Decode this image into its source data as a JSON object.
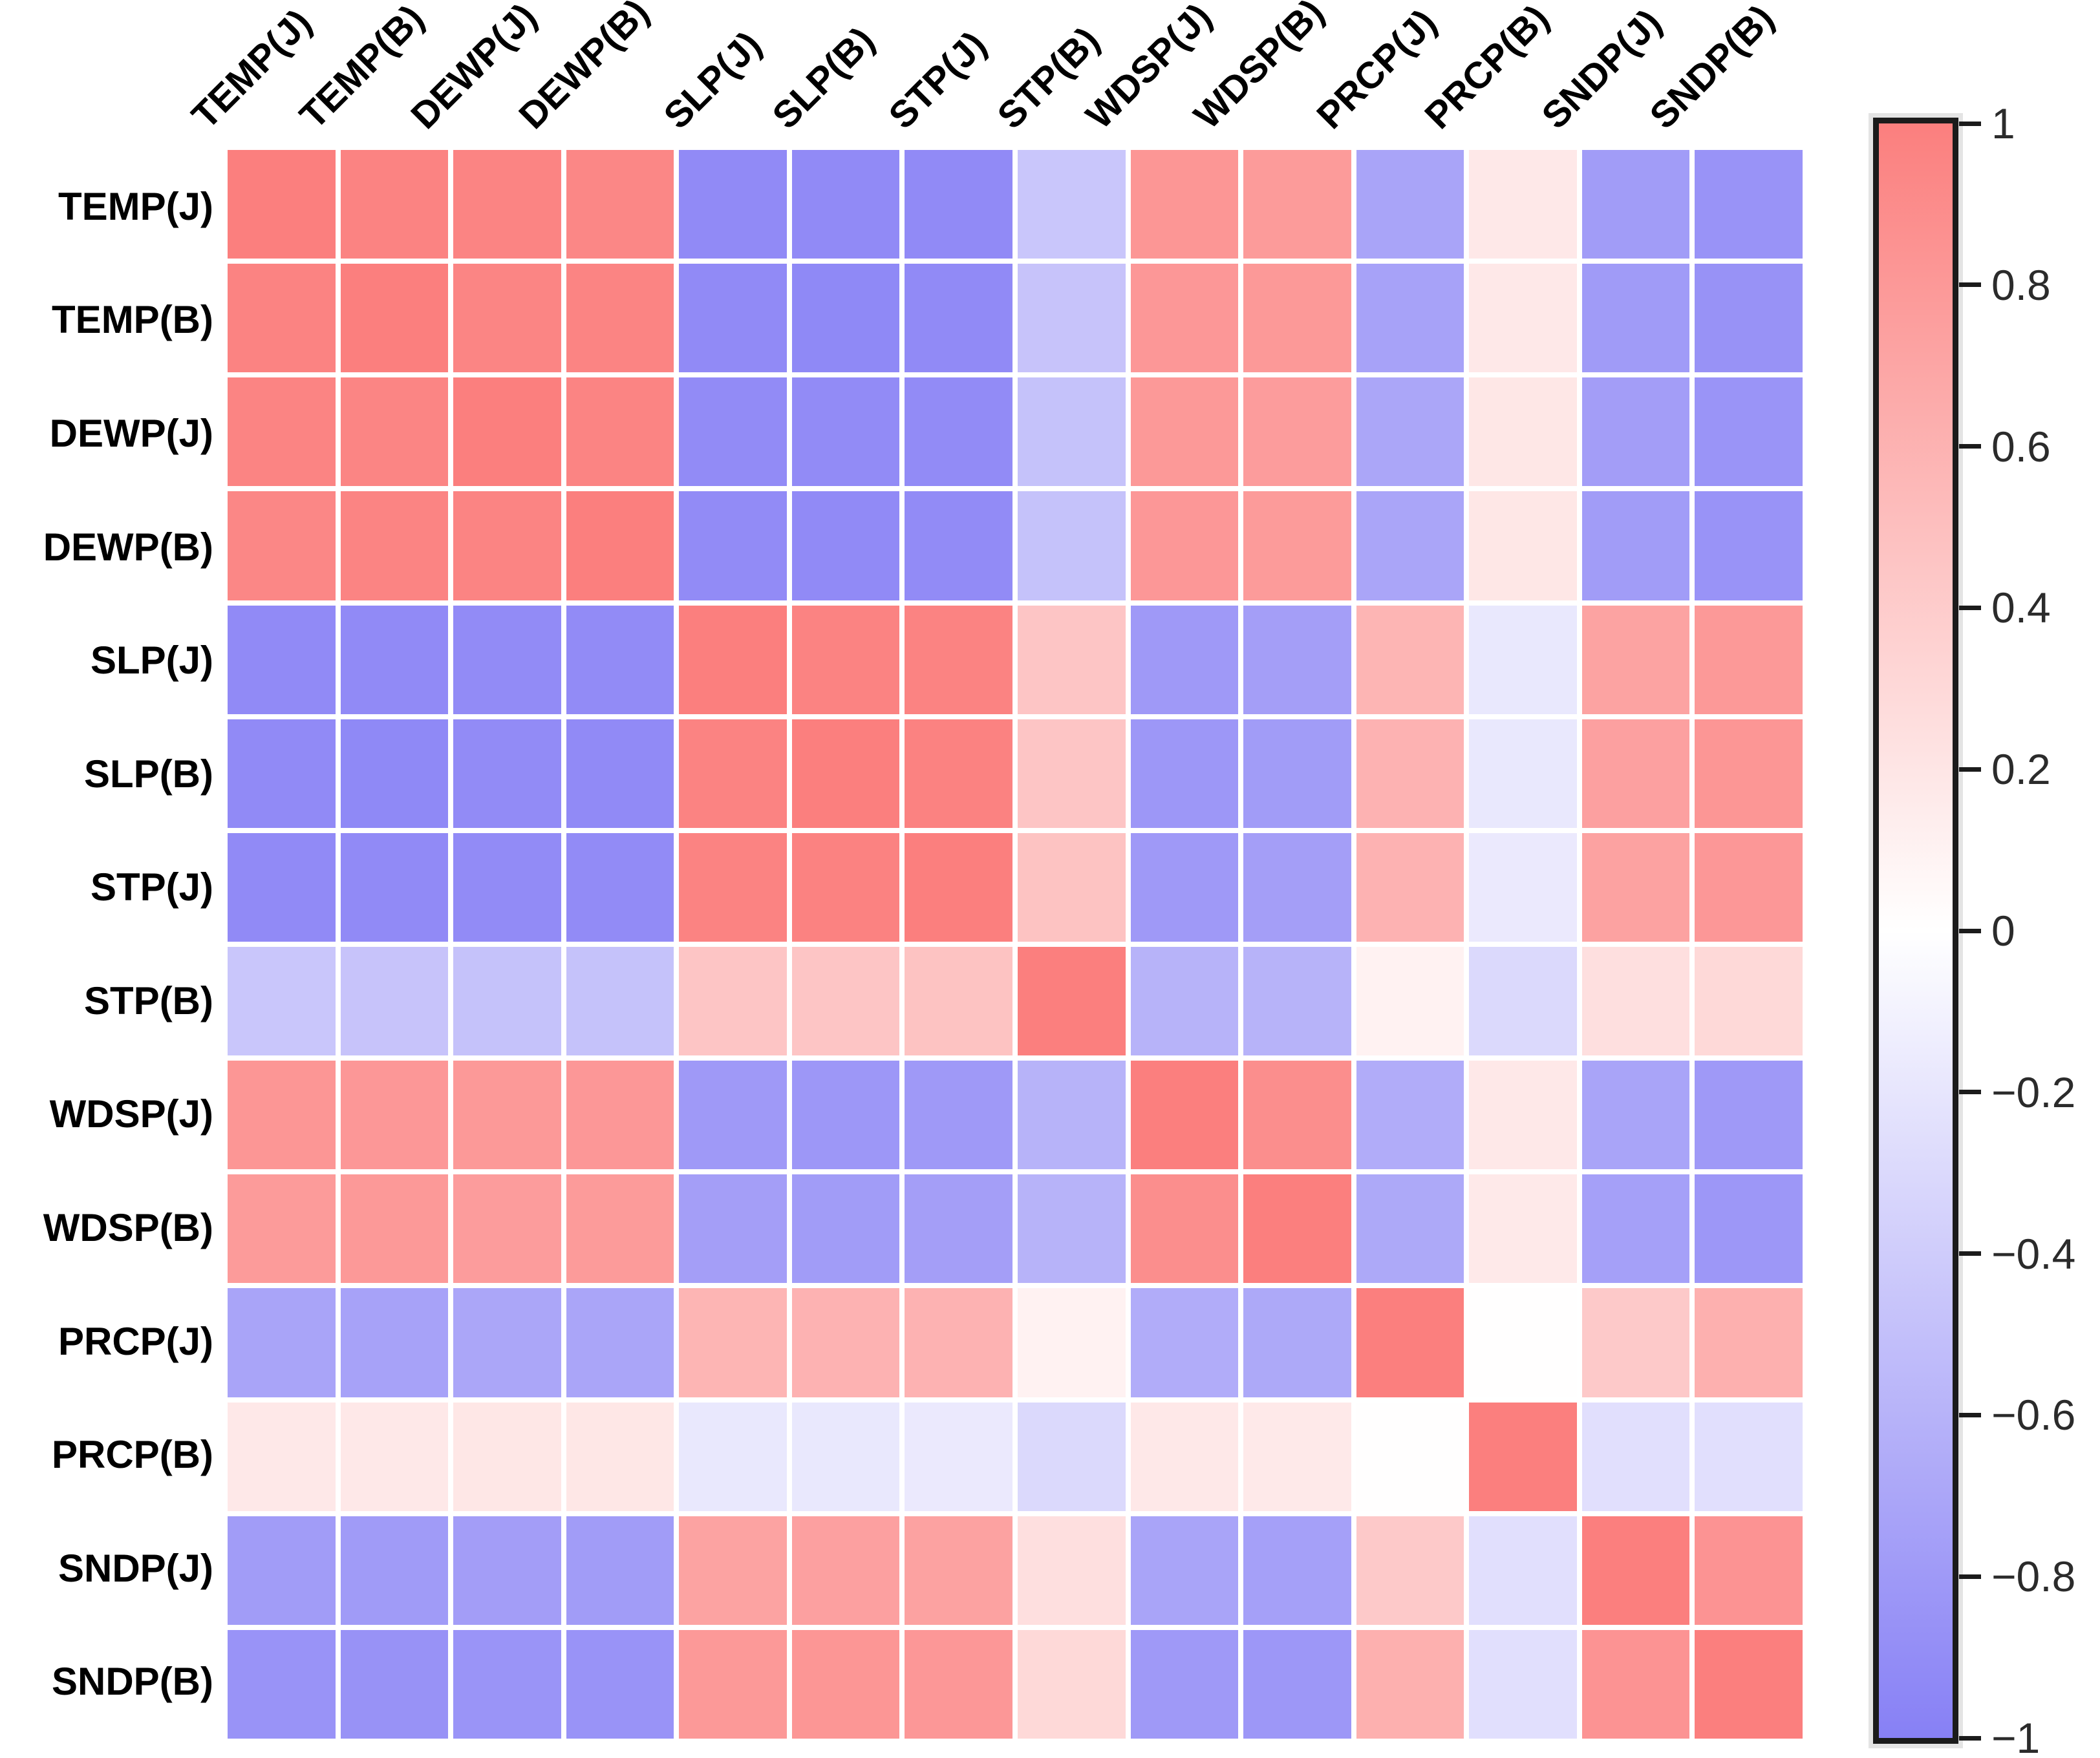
{
  "figure": {
    "background": "#ffffff",
    "title": ""
  },
  "chart_data": {
    "type": "heatmap",
    "title": "",
    "xlabel": "",
    "ylabel": "",
    "variables": [
      "TEMP(J)",
      "TEMP(B)",
      "DEWP(J)",
      "DEWP(B)",
      "SLP(J)",
      "SLP(B)",
      "STP(J)",
      "STP(B)",
      "WDSP(J)",
      "WDSP(B)",
      "PRCP(J)",
      "PRCP(B)",
      "SNDP(J)",
      "SNDP(B)"
    ],
    "matrix": [
      [
        1.0,
        0.97,
        0.96,
        0.94,
        -0.92,
        -0.92,
        -0.92,
        -0.45,
        0.82,
        0.78,
        -0.72,
        0.18,
        -0.78,
        -0.85
      ],
      [
        0.97,
        1.0,
        0.95,
        0.96,
        -0.92,
        -0.93,
        -0.92,
        -0.47,
        0.81,
        0.8,
        -0.73,
        0.18,
        -0.79,
        -0.86
      ],
      [
        0.96,
        0.95,
        1.0,
        0.96,
        -0.91,
        -0.91,
        -0.91,
        -0.48,
        0.8,
        0.77,
        -0.7,
        0.19,
        -0.77,
        -0.84
      ],
      [
        0.94,
        0.96,
        0.96,
        1.0,
        -0.91,
        -0.92,
        -0.91,
        -0.48,
        0.81,
        0.78,
        -0.71,
        0.19,
        -0.78,
        -0.85
      ],
      [
        -0.92,
        -0.92,
        -0.91,
        -0.91,
        1.0,
        0.97,
        0.97,
        0.45,
        -0.8,
        -0.76,
        0.58,
        -0.18,
        0.72,
        0.8
      ],
      [
        -0.92,
        -0.93,
        -0.91,
        -0.92,
        0.97,
        1.0,
        0.98,
        0.45,
        -0.82,
        -0.78,
        0.6,
        -0.18,
        0.74,
        0.82
      ],
      [
        -0.92,
        -0.92,
        -0.91,
        -0.91,
        0.97,
        0.98,
        1.0,
        0.47,
        -0.8,
        -0.76,
        0.6,
        -0.17,
        0.73,
        0.81
      ],
      [
        -0.45,
        -0.47,
        -0.48,
        -0.48,
        0.45,
        0.45,
        0.47,
        1.0,
        -0.6,
        -0.6,
        0.1,
        -0.3,
        0.25,
        0.3
      ],
      [
        0.82,
        0.81,
        0.8,
        0.81,
        -0.8,
        -0.82,
        -0.8,
        -0.6,
        1.0,
        0.88,
        -0.65,
        0.18,
        -0.72,
        -0.8
      ],
      [
        0.78,
        0.8,
        0.77,
        0.78,
        -0.76,
        -0.78,
        -0.76,
        -0.6,
        0.88,
        1.0,
        -0.68,
        0.17,
        -0.75,
        -0.82
      ],
      [
        -0.72,
        -0.73,
        -0.7,
        -0.71,
        0.58,
        0.6,
        0.6,
        0.1,
        -0.65,
        -0.68,
        1.0,
        0.01,
        0.42,
        0.62
      ],
      [
        0.18,
        0.18,
        0.19,
        0.19,
        -0.18,
        -0.18,
        -0.17,
        -0.3,
        0.18,
        0.17,
        0.01,
        1.0,
        -0.25,
        -0.25
      ],
      [
        -0.78,
        -0.79,
        -0.77,
        -0.78,
        0.72,
        0.74,
        0.73,
        0.25,
        -0.72,
        -0.75,
        0.42,
        -0.25,
        1.0,
        0.84
      ],
      [
        -0.85,
        -0.86,
        -0.84,
        -0.85,
        0.8,
        0.82,
        0.81,
        0.3,
        -0.8,
        -0.82,
        0.62,
        -0.25,
        0.84,
        1.0
      ]
    ],
    "colorbar": {
      "tick_labels": [
        "1",
        "0.8",
        "0.6",
        "0.4",
        "0.2",
        "0",
        "−0.2",
        "−0.4",
        "−0.6",
        "−0.8",
        "−1"
      ],
      "tick_values": [
        1,
        0.8,
        0.6,
        0.4,
        0.2,
        0,
        -0.2,
        -0.4,
        -0.6,
        -0.8,
        -1
      ],
      "range": [
        -1,
        1
      ],
      "max_color": "#FB7F7E",
      "mid_color": "#FFFFFF",
      "min_color": "#8780F5"
    },
    "layout": {
      "legend_position": "right",
      "grid": "white-gaps",
      "x_label_angle_deg": -45
    }
  }
}
